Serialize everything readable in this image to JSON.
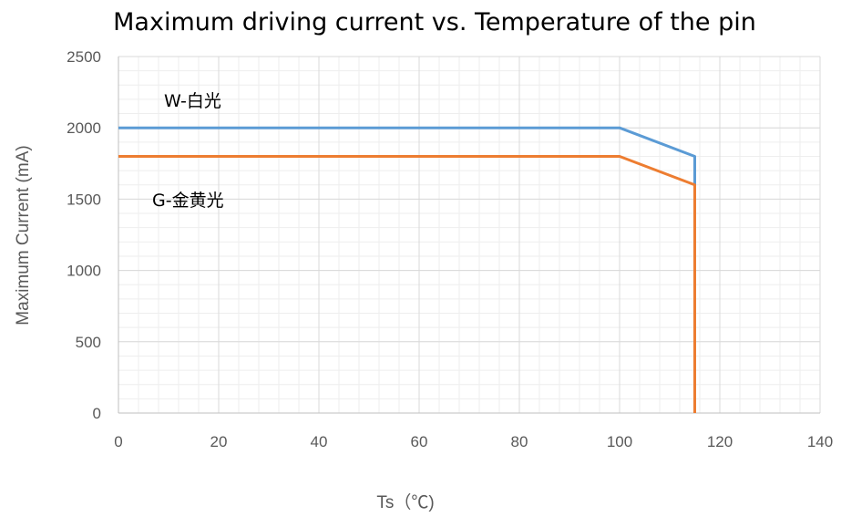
{
  "chart_data": {
    "type": "line",
    "title": "Maximum driving current vs. Temperature of the pin",
    "xlabel": "Ts（℃)",
    "ylabel": "Maximum Current (mA)",
    "xlim": [
      0,
      140
    ],
    "ylim": [
      0,
      2500
    ],
    "xticks": [
      0,
      20,
      40,
      60,
      80,
      100,
      120,
      140
    ],
    "yticks": [
      0,
      500,
      1000,
      1500,
      2000,
      2500
    ],
    "grid": true,
    "legend": "none",
    "series": [
      {
        "name": "W-白光",
        "color": "#5b9bd5",
        "x": [
          0,
          100,
          115,
          115
        ],
        "y": [
          2000,
          2000,
          1800,
          0
        ]
      },
      {
        "name": "G-金黄光",
        "color": "#ed7d31",
        "x": [
          0,
          100,
          115,
          115
        ],
        "y": [
          1800,
          1800,
          1600,
          0
        ]
      }
    ]
  }
}
